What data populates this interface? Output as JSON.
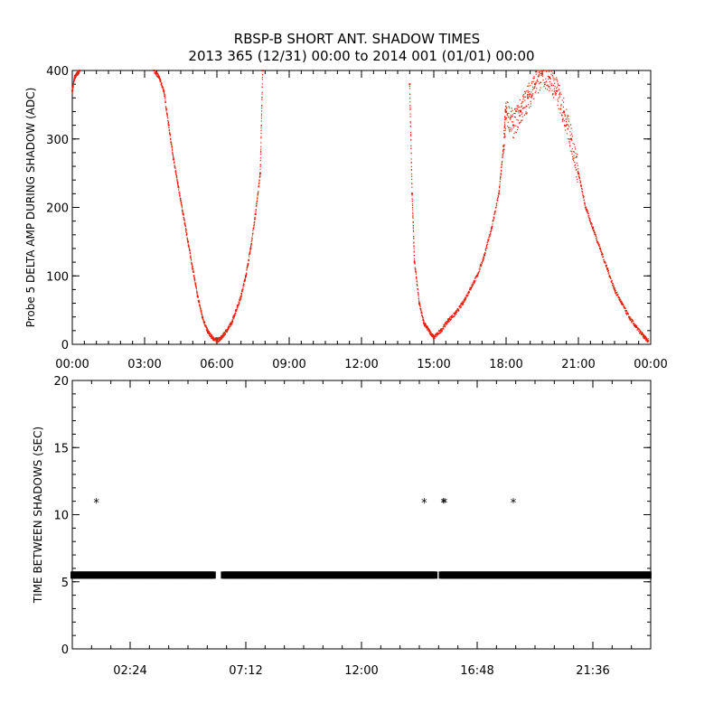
{
  "chart_data": [
    {
      "type": "scatter",
      "title": "RBSP-B SHORT ANT. SHADOW TIMES",
      "subtitle": "2013 365 (12/31) 00:00 to 2014 001 (01/01) 00:00",
      "xlabel": "",
      "ylabel": "Probe 5 DELTA AMP DURING SHADOW (ADC)",
      "x_unit": "hours",
      "xlim": [
        0,
        24
      ],
      "ylim": [
        0,
        400
      ],
      "x_tick_values": [
        0,
        3,
        6,
        9,
        12,
        15,
        18,
        21,
        24
      ],
      "x_tick_labels": [
        "00:00",
        "03:00",
        "06:00",
        "09:00",
        "12:00",
        "15:00",
        "18:00",
        "21:00",
        "00:00"
      ],
      "y_tick_values": [
        0,
        100,
        200,
        300,
        400
      ],
      "y_tick_labels": [
        "0",
        "100",
        "200",
        "300",
        "400"
      ],
      "point_color": "#e8200c",
      "grid": false,
      "series": [
        {
          "x": [
            0.0,
            0.1,
            0.2,
            0.3,
            3.4,
            3.6,
            3.8,
            4.0,
            4.2,
            4.4,
            4.6,
            4.8,
            5.0,
            5.2,
            5.4,
            5.6,
            5.8,
            6.0,
            6.2,
            6.4,
            6.6,
            6.8,
            7.0,
            7.2,
            7.4,
            7.6,
            7.8,
            7.9,
            14.0,
            14.1,
            14.2,
            14.4,
            14.6,
            14.8,
            15.0,
            15.3,
            15.6,
            15.9,
            16.2,
            16.5,
            16.8,
            17.1,
            17.4,
            17.7,
            17.9,
            18.0,
            18.3,
            18.6,
            18.9,
            19.2,
            19.5,
            19.8,
            20.1,
            20.4,
            20.7,
            21.0,
            21.3,
            21.6,
            21.9,
            22.2,
            22.5,
            22.8,
            23.1,
            23.4,
            23.7,
            23.9
          ],
          "y": [
            370,
            390,
            395,
            400,
            400,
            390,
            370,
            320,
            270,
            230,
            190,
            150,
            110,
            70,
            40,
            20,
            10,
            5,
            10,
            20,
            30,
            50,
            70,
            100,
            140,
            190,
            250,
            400,
            380,
            220,
            120,
            60,
            30,
            20,
            10,
            20,
            35,
            45,
            60,
            80,
            100,
            130,
            170,
            220,
            290,
            340,
            320,
            340,
            360,
            380,
            395,
            390,
            370,
            340,
            300,
            250,
            200,
            170,
            140,
            110,
            80,
            60,
            40,
            25,
            12,
            5
          ]
        }
      ]
    },
    {
      "type": "scatter",
      "title": "",
      "xlabel": "",
      "ylabel": "TIME BETWEEN SHADOWS (SEC)",
      "x_unit": "hours",
      "xlim": [
        0,
        24
      ],
      "ylim": [
        0,
        20
      ],
      "x_tick_values": [
        2.4,
        7.2,
        12.0,
        16.8,
        21.6
      ],
      "x_tick_labels": [
        "02:24",
        "07:12",
        "12:00",
        "16:48",
        "21:36"
      ],
      "y_tick_values": [
        0,
        5,
        10,
        15,
        20
      ],
      "y_tick_labels": [
        "0",
        "5",
        "10",
        "15",
        "20"
      ],
      "point_color": "#000000",
      "marker": "*",
      "grid": false,
      "series": [
        {
          "baseline_value": 5.5,
          "baseline_gaps": [
            [
              5.9,
              6.2
            ],
            [
              15.1,
              15.3
            ]
          ],
          "outliers_x": [
            1.0,
            14.6,
            15.4,
            15.45,
            18.3
          ],
          "outliers_y": [
            10.9,
            10.9,
            10.9,
            10.9,
            10.9
          ]
        }
      ]
    }
  ]
}
